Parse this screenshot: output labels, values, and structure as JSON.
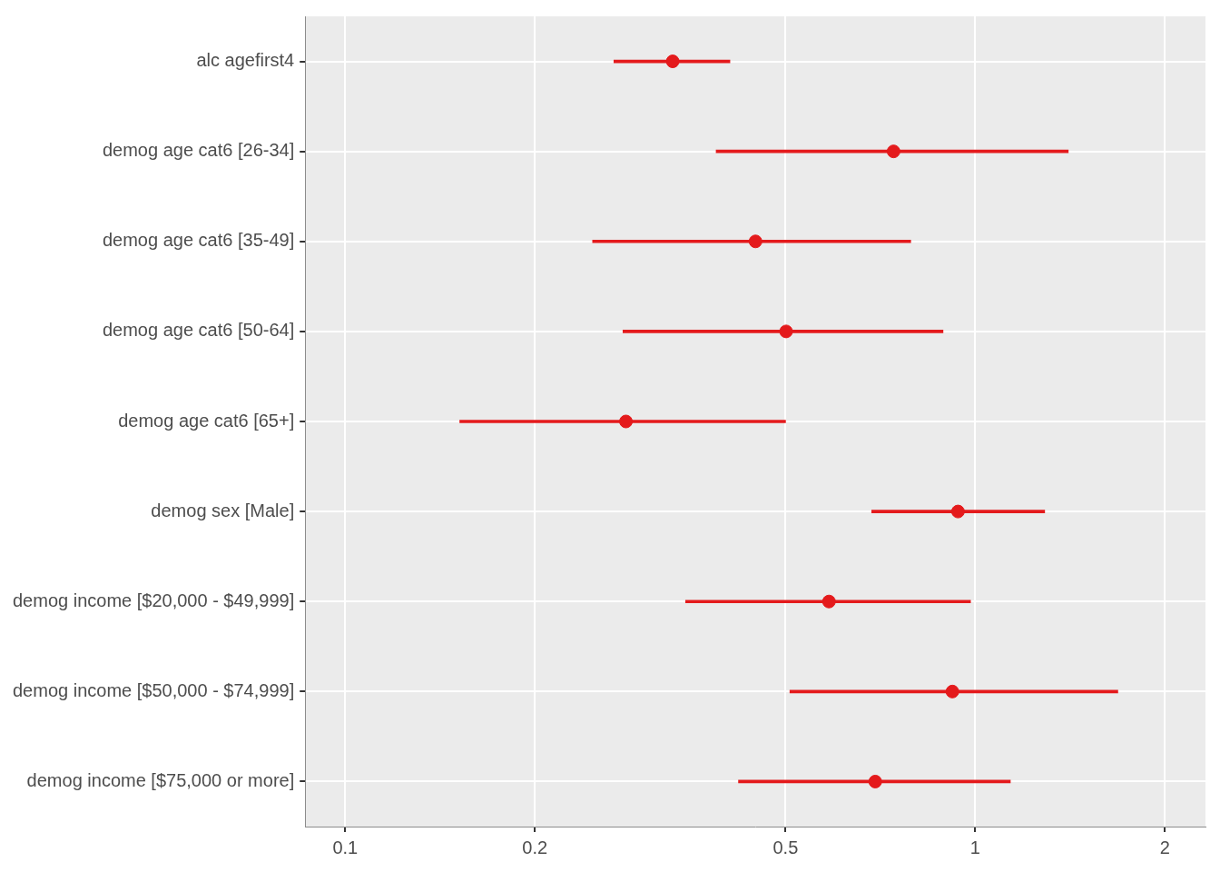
{
  "chart_data": {
    "type": "forest",
    "categories": [
      "alc agefirst4",
      "demog age cat6 [26-34]",
      "demog age cat6 [35-49]",
      "demog age cat6 [50-64]",
      "demog age cat6 [65+]",
      "demog sex [Male]",
      "demog income [$20,000 - $49,999]",
      "demog income [$50,000 - $74,999]",
      "demog income [$75,000 or more]"
    ],
    "values": [
      0.331,
      0.742,
      0.448,
      0.501,
      0.279,
      0.939,
      0.586,
      0.92,
      0.694
    ],
    "ci_lower": [
      0.267,
      0.388,
      0.247,
      0.276,
      0.152,
      0.685,
      0.347,
      0.508,
      0.421
    ],
    "ci_upper": [
      0.408,
      1.405,
      0.79,
      0.889,
      0.5,
      1.289,
      0.983,
      1.684,
      1.137
    ],
    "color": "#e41a1c",
    "log": "x",
    "xlim": [
      0.0864,
      2.32
    ],
    "xticks": [
      0.1,
      0.2,
      0.5,
      1,
      2
    ],
    "grid": true
  }
}
